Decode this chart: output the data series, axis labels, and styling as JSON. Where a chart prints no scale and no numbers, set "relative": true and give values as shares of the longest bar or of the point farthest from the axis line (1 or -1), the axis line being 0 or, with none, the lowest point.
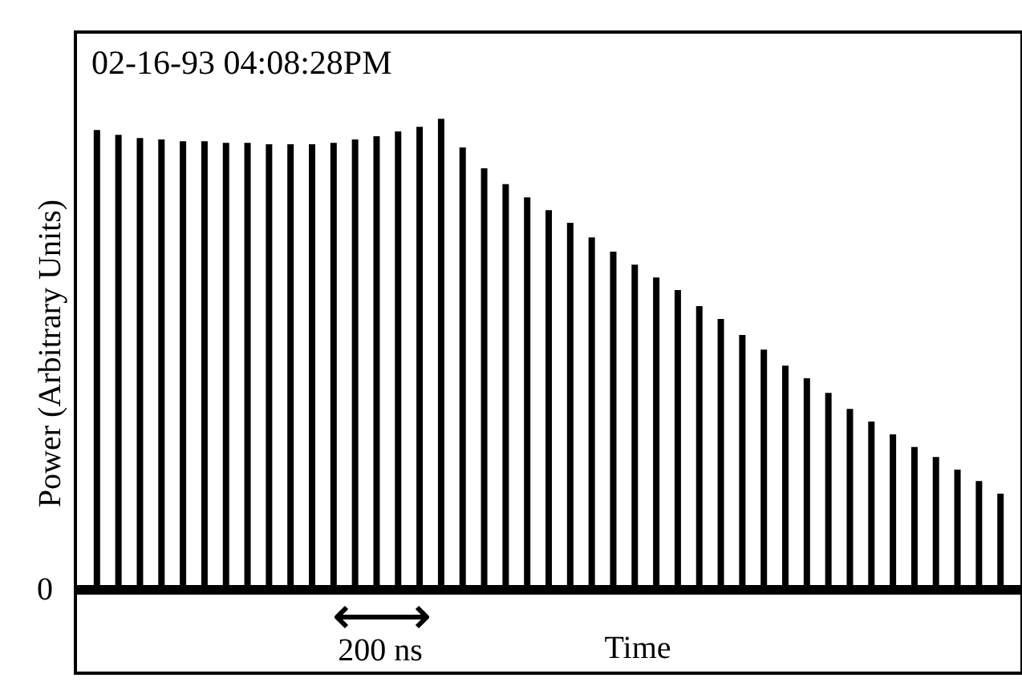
{
  "chart_data": {
    "type": "bar",
    "title": "02-16-93  04:08:28PM",
    "xlabel": "Time",
    "ylabel": "Power  (Arbitrary Units)",
    "annotations": [
      "0",
      "200 ns"
    ],
    "relative": true,
    "categories": [
      null,
      null,
      null,
      null,
      null,
      null,
      null,
      null,
      null,
      null,
      null,
      null,
      null,
      null,
      null,
      null,
      null,
      null,
      null,
      null,
      null,
      null,
      null,
      null,
      null,
      null,
      null,
      null,
      null,
      null,
      null,
      null,
      null,
      null,
      null,
      null,
      null,
      null,
      null,
      null,
      null,
      null,
      null
    ],
    "series": [
      {
        "color": "#000000",
        "values": [
          0.976,
          0.966,
          0.959,
          0.956,
          0.952,
          0.952,
          0.949,
          0.949,
          0.946,
          0.946,
          0.946,
          0.949,
          0.956,
          0.963,
          0.973,
          0.983,
          1,
          0.939,
          0.895,
          0.861,
          0.833,
          0.806,
          0.779,
          0.748,
          0.718,
          0.69,
          0.663,
          0.636,
          0.602,
          0.575,
          0.541,
          0.51,
          0.476,
          0.449,
          0.418,
          0.384,
          0.357,
          0.33,
          0.303,
          0.282,
          0.255,
          0.231,
          0.204
        ]
      }
    ]
  }
}
